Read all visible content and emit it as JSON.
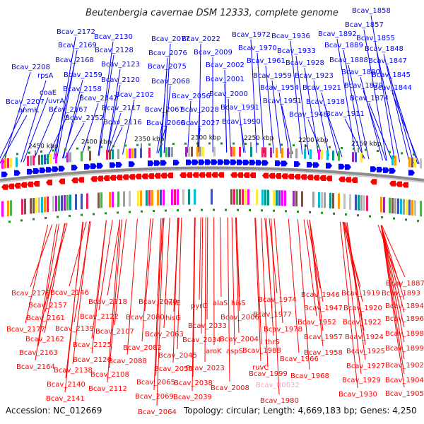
{
  "title": "Beutenbergia cavernae DSM 12333, complete genome",
  "footer": {
    "accession": "Accession: NC_012669",
    "summary": "Topology: circular; Length: 4,669,183 bp; Genes: 4,250"
  },
  "colors": {
    "plus_strand": "#0000ff",
    "minus_strand": "#ff0000",
    "rna_label": "#ff99cc",
    "backbone": "#888888",
    "marker": "#228b22"
  },
  "scale_ticks": [
    "2450 kbp",
    "2400 kbp",
    "2350 kbp",
    "2300 kbp",
    "2250 kbp",
    "2200 kbp",
    "2150 kbp"
  ],
  "top_labels": [
    "Bcav_1858",
    "Bcav_1857",
    "Bcav_2172",
    "Bcav_2130",
    "Bcav_2077",
    "Bcav_2022",
    "Bcav_1972",
    "Bcav_1936",
    "Bcav_1892",
    "Bcav_1855",
    "Bcav_2169",
    "Bcav_2128",
    "Bcav_2076",
    "Bcav_2009",
    "Bcav_1970",
    "Bcav_1933",
    "Bcav_1889",
    "Bcav_1848",
    "Bcav_2168",
    "Bcav_1961",
    "Bcav_1928",
    "Bcav_1888",
    "Bcav_1847",
    "Bcav_2208",
    "Bcav_2123",
    "Bcav_2075",
    "Bcav_2002",
    "rpsA",
    "Bcav_2159",
    "Bcav_2120",
    "Bcav_2068",
    "Bcav_2001",
    "Bcav_1959",
    "Bcav_1923",
    "Bcav_1880",
    "Bcav_1845",
    "Bcav_2158",
    "Bcav_1954",
    "Bcav_1921",
    "Bcav_1879",
    "Bcav_1844",
    "coaE",
    "Bcav_2142",
    "Bcav_2102",
    "Bcav_2056",
    "Bcav_2000",
    "uvrA",
    "Bcav_1951",
    "Bcav_1918",
    "Bcav_1874",
    "Bcav_2207",
    "Bcav_2117",
    "Bcav_2067",
    "Bcav_2028",
    "Bcav_1991",
    "anmK",
    "Bcav_2167",
    "Bcav_1948",
    "Bcav_1911",
    "Bcav_2152",
    "Bcav_2116",
    "Bcav_2066",
    "Bcav_2027",
    "Bcav_1990"
  ],
  "bottom_labels": [
    "Bcav_1887",
    "Bcav_1893",
    "Bcav_1919",
    "Bcav_1946",
    "Bcav_2176",
    "Bcav_2146",
    "Bcav_1974",
    "Bcav_2157",
    "Bcav_2118",
    "Bcav_2079",
    "hisE",
    "pyrC",
    "alaS",
    "hisS",
    "Bcav_1894",
    "Bcav_1920",
    "Bcav_1947",
    "Bcav_2161",
    "Bcav_2122",
    "Bcav_2080",
    "hisG",
    "Bcav_2006",
    "Bcav_1977",
    "Bcav_1952",
    "Bcav_1922",
    "Bcav_1896",
    "Bcav_2177",
    "Bcav_2139",
    "Bcav_2107",
    "Bcav_2063",
    "Bcav_2033",
    "Bcav_1978",
    "Bcav_2162",
    "Bcav_1957",
    "Bcav_1924",
    "Bcav_1898",
    "Bcav_2125",
    "Bcav_2034",
    "Bcav_2004",
    "thrS",
    "Bcav_2163",
    "Bcav_2082",
    "Bcav_1988",
    "Bcav_1958",
    "Bcav_1925",
    "Bcav_1899",
    "Bcav_2126",
    "Bcav_2045",
    "aroK",
    "aspS",
    "Bcav_1966",
    "Bcav_2164",
    "Bcav_2138",
    "Bcav_2088",
    "Bcav_2055",
    "Bcav_2023",
    "ruvC",
    "Bcav_1927",
    "Bcav_1902",
    "Bcav_2108",
    "Bcav_1999",
    "Bcav_1968",
    "Bcav_2140",
    "Bcav_2065",
    "Bcav_2038",
    "Bcav_2008",
    "Bcav_1929",
    "Bcav_1904",
    "Bcav_2112",
    "Bcav_2069",
    "Bcav_2039",
    "Bcav_1930",
    "Bcav_1905",
    "Bcav_2141",
    "Bcav_1980",
    "Bcav_2064"
  ],
  "rna_labels": [
    "Bcav_R0032"
  ]
}
